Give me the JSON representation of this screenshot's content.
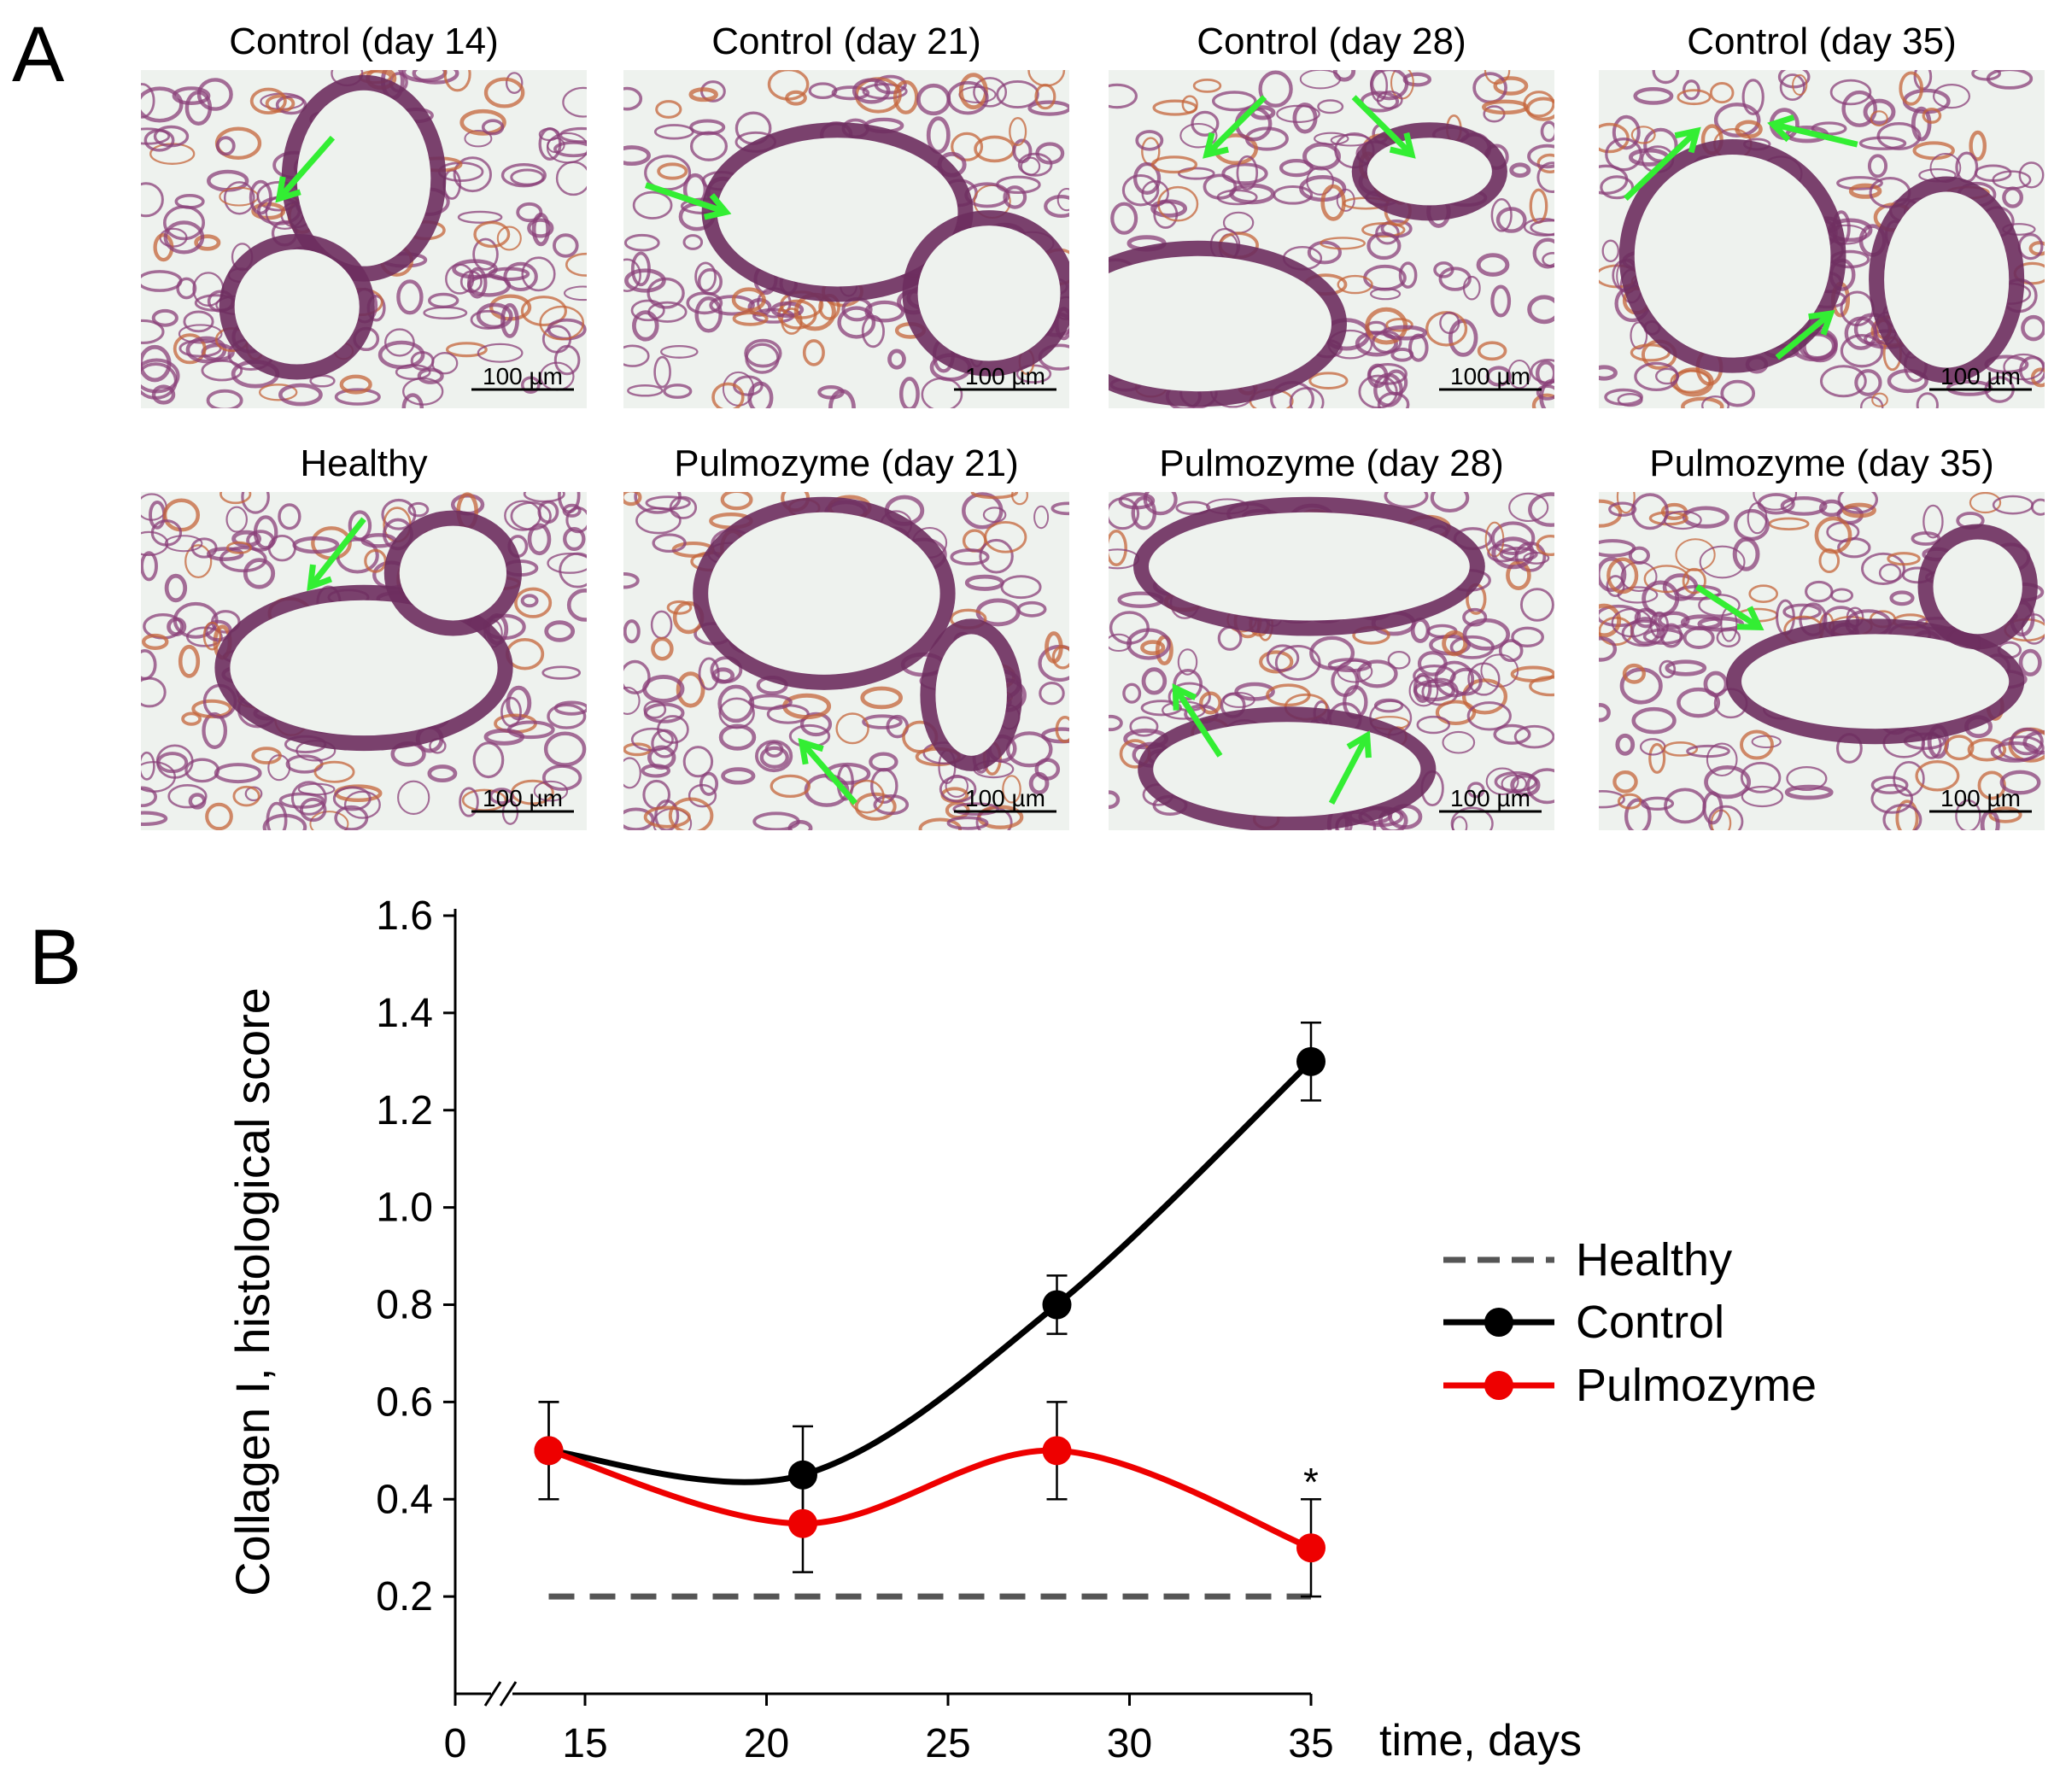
{
  "panel_a": {
    "letter": "A",
    "scale_bar_label": "100 µm",
    "micrographs": [
      {
        "title": "Control (day 14)"
      },
      {
        "title": "Control (day 21)"
      },
      {
        "title": "Control (day 28)"
      },
      {
        "title": "Control (day 35)"
      },
      {
        "title": "Healthy"
      },
      {
        "title": "Pulmozyme (day 21)"
      },
      {
        "title": "Pulmozyme (day 28)"
      },
      {
        "title": "Pulmozyme (day 35)"
      }
    ],
    "colors": {
      "stain": "#8a3f78",
      "stain_dark": "#6d2d5e",
      "collagen": "#c4643a",
      "background": "#eef2ee",
      "arrow": "#33ee33"
    }
  },
  "panel_b": {
    "letter": "B"
  },
  "chart_data": {
    "type": "line",
    "ylabel": "Collagen I, histological score",
    "xlabel": "time, days",
    "ylim": [
      0,
      1.6
    ],
    "yticks": [
      "0.2",
      "0.4",
      "0.6",
      "0.8",
      "1.0",
      "1.2",
      "1.4",
      "1.6"
    ],
    "xticks": [
      "0",
      "15",
      "20",
      "25",
      "30",
      "35"
    ],
    "axis_break": true,
    "series": [
      {
        "name": "Healthy",
        "style": "dashed",
        "color": "#555555",
        "x": [
          14,
          35
        ],
        "y": [
          0.2,
          0.2
        ]
      },
      {
        "name": "Control",
        "style": "solid-markers",
        "color": "#000000",
        "x": [
          14,
          21,
          28,
          35
        ],
        "y": [
          0.5,
          0.45,
          0.8,
          1.3
        ],
        "err": [
          0.1,
          0.1,
          0.06,
          0.08
        ]
      },
      {
        "name": "Pulmozyme",
        "style": "solid-markers",
        "color": "#ee0000",
        "x": [
          14,
          21,
          28,
          35
        ],
        "y": [
          0.5,
          0.35,
          0.5,
          0.3
        ],
        "err": [
          0.1,
          0.1,
          0.1,
          0.1
        ]
      }
    ],
    "annotations": [
      {
        "text": "*",
        "x": 35,
        "y": 0.45
      }
    ],
    "legend": {
      "placement": "right",
      "entries": [
        "Healthy",
        "Control",
        "Pulmozyme"
      ]
    }
  }
}
